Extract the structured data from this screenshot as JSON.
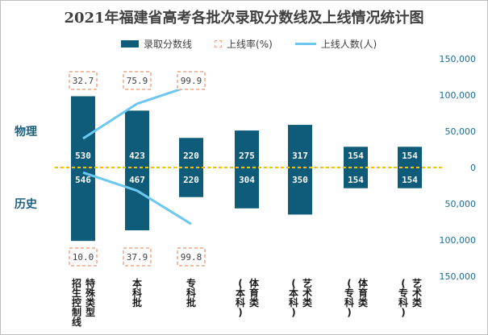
{
  "title": "2021年福建省高考各批次录取分数线及上线情况统计图",
  "legend": {
    "bar": "录取分数线",
    "rate": "上线率(%)",
    "count": "上线人数(人)"
  },
  "groups": {
    "physics": "物理",
    "history": "历史"
  },
  "chart_data": {
    "type": "bar",
    "title": "2021年福建省高考各批次录取分数线及上线情况统计图",
    "categories": [
      "特殊类型招生控制线",
      "本科批",
      "专科批",
      "体育类(本科)",
      "艺术类(本科)",
      "体育类(专科)",
      "艺术类(专科)"
    ],
    "category_labels": [
      [
        "特殊类型",
        "招生控制线"
      ],
      [
        "本科批"
      ],
      [
        "专科批"
      ],
      [
        "体育类",
        "(本科)"
      ],
      [
        "艺术类",
        "(本科)"
      ],
      [
        "体育类",
        "(专科)"
      ],
      [
        "艺术类",
        "(专科)"
      ]
    ],
    "series": [
      {
        "name": "物理",
        "values": [
          530,
          423,
          220,
          275,
          317,
          154,
          154
        ]
      },
      {
        "name": "历史",
        "values": [
          546,
          467,
          220,
          304,
          350,
          154,
          154
        ]
      }
    ],
    "rate": {
      "physics": [
        "32.7",
        "75.9",
        "99.9"
      ],
      "history": [
        "10.0",
        "37.9",
        "99.8"
      ]
    },
    "count_line": {
      "physics": [
        40000,
        88000,
        113000
      ],
      "history": [
        7000,
        32000,
        78000
      ]
    },
    "right_axis": {
      "ticks": [
        150000,
        100000,
        50000,
        0,
        50000,
        100000,
        150000
      ],
      "tick_labels": [
        "150,000",
        "100,000",
        "50,000",
        "0",
        "50,000",
        "100,000",
        "150,000"
      ],
      "range": [
        -150000,
        150000
      ]
    },
    "colors": {
      "bar": "#0f5b7a",
      "rate_box": "#f4a582",
      "line": "#6cc8ef",
      "baseline": "#f2c200",
      "group_label": "#1b5e7e"
    }
  }
}
